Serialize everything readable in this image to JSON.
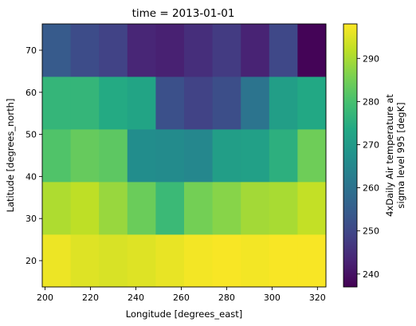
{
  "chart_data": {
    "type": "heatmap",
    "title": "time = 2013-01-01",
    "xlabel": "Longitude [degrees_east]",
    "ylabel": "Latitude [degrees_north]",
    "x_centers": [
      205,
      217.5,
      230,
      242.5,
      255,
      267.5,
      280,
      292.5,
      305,
      317.5
    ],
    "y_centers": [
      20,
      32.5,
      45,
      57.5,
      70
    ],
    "xlim": [
      198.75,
      323.75
    ],
    "ylim": [
      13.75,
      76.25
    ],
    "x_ticks": [
      200,
      220,
      240,
      260,
      280,
      300,
      320
    ],
    "y_ticks": [
      20,
      30,
      40,
      50,
      60,
      70
    ],
    "colorbar": {
      "label_line1": "4xDaily Air temperature at",
      "label_line2": "sigma level 995 [degK]",
      "vmin": 237,
      "vmax": 298,
      "ticks": [
        240,
        250,
        260,
        270,
        280,
        290
      ]
    },
    "colormap": "viridis",
    "values": [
      [
        296.5,
        295.0,
        294.5,
        295.0,
        296.0,
        297.0,
        297.5,
        297.0,
        297.5,
        297.5
      ],
      [
        290.5,
        292.0,
        288.5,
        284.0,
        278.0,
        285.0,
        287.0,
        289.5,
        290.0,
        292.5
      ],
      [
        281.0,
        283.5,
        282.5,
        266.5,
        266.0,
        265.0,
        271.0,
        271.5,
        275.5,
        284.5
      ],
      [
        277.0,
        277.0,
        274.0,
        272.5,
        252.0,
        249.0,
        251.5,
        260.5,
        271.0,
        273.5
      ],
      [
        254.5,
        251.0,
        249.0,
        243.5,
        242.5,
        245.0,
        247.5,
        243.0,
        250.0,
        237.5
      ]
    ]
  }
}
